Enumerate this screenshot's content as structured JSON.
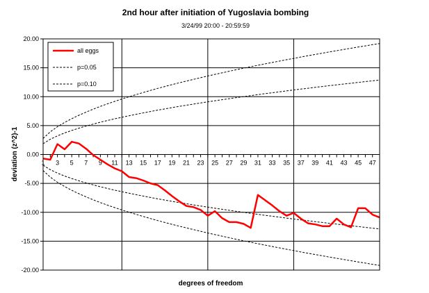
{
  "chart_data": {
    "type": "line",
    "title": "2nd hour after initiation of Yugoslavia bombing",
    "subtitle": "3/24/99 20:00 - 20:59:59",
    "xlabel": "degrees of freedom",
    "ylabel": "deviation (z^2)-1",
    "xlim": [
      1,
      48
    ],
    "ylim": [
      -20,
      20
    ],
    "y_ticks": [
      "20.00",
      "15.00",
      "10.00",
      "5.00",
      "0.00",
      "-5.00",
      "-10.00",
      "-15.00",
      "-20.00"
    ],
    "x_ticks": [
      "1",
      "3",
      "5",
      "7",
      "9",
      "11",
      "13",
      "15",
      "17",
      "19",
      "21",
      "23",
      "25",
      "27",
      "29",
      "31",
      "33",
      "35",
      "37",
      "39",
      "41",
      "43",
      "45",
      "47"
    ],
    "grid": true,
    "legend_position": "top-left",
    "x": [
      1,
      2,
      3,
      4,
      5,
      6,
      7,
      8,
      9,
      10,
      11,
      12,
      13,
      14,
      15,
      16,
      17,
      18,
      19,
      20,
      21,
      22,
      23,
      24,
      25,
      26,
      27,
      28,
      29,
      30,
      31,
      32,
      33,
      34,
      35,
      36,
      37,
      38,
      39,
      40,
      41,
      42,
      43,
      44,
      45,
      46,
      47,
      48
    ],
    "series": [
      {
        "name": "all eggs",
        "color": "#ff0000",
        "style": "solid",
        "values": [
          -0.7,
          -0.9,
          1.8,
          0.9,
          2.2,
          1.9,
          1.0,
          -0.1,
          -0.9,
          -1.7,
          -2.4,
          -2.9,
          -3.9,
          -4.1,
          -4.5,
          -5.0,
          -5.3,
          -6.2,
          -7.2,
          -8.1,
          -8.9,
          -9.1,
          -9.6,
          -10.6,
          -9.8,
          -11.0,
          -11.7,
          -11.7,
          -12.0,
          -12.7,
          -7.0,
          -7.9,
          -8.8,
          -9.8,
          -10.6,
          -10.1,
          -11.1,
          -11.9,
          -12.1,
          -12.4,
          -12.4,
          -11.1,
          -12.1,
          -12.6,
          -9.3,
          -9.3,
          -10.4,
          -10.9
        ]
      },
      {
        "name": "p=0.05",
        "color": "#000000",
        "style": "dashed",
        "values": [
          2.77,
          3.92,
          4.8,
          5.54,
          6.2,
          6.79,
          7.33,
          7.84,
          8.32,
          8.77,
          9.19,
          9.6,
          9.99,
          10.37,
          10.73,
          11.09,
          11.43,
          11.76,
          12.08,
          12.4,
          12.7,
          13.0,
          13.29,
          13.58,
          13.86,
          14.13,
          14.4,
          14.67,
          14.93,
          15.18,
          15.43,
          15.68,
          15.92,
          16.16,
          16.4,
          16.63,
          16.86,
          17.09,
          17.31,
          17.53,
          17.75,
          17.96,
          18.17,
          18.38,
          18.59,
          18.79,
          19.0,
          19.2
        ]
      },
      {
        "name": "p=0.10",
        "color": "#000000",
        "style": "dashed",
        "values": [
          1.86,
          2.63,
          3.22,
          3.72,
          4.16,
          4.55,
          4.92,
          5.26,
          5.58,
          5.88,
          6.17,
          6.44,
          6.7,
          6.96,
          7.2,
          7.44,
          7.67,
          7.89,
          8.11,
          8.32,
          8.52,
          8.72,
          8.92,
          9.11,
          9.3,
          9.48,
          9.66,
          9.84,
          10.01,
          10.19,
          10.35,
          10.52,
          10.68,
          10.84,
          11.0,
          11.16,
          11.31,
          11.46,
          11.61,
          11.76,
          11.91,
          12.05,
          12.19,
          12.33,
          12.47,
          12.61,
          12.74,
          12.88
        ]
      }
    ]
  }
}
